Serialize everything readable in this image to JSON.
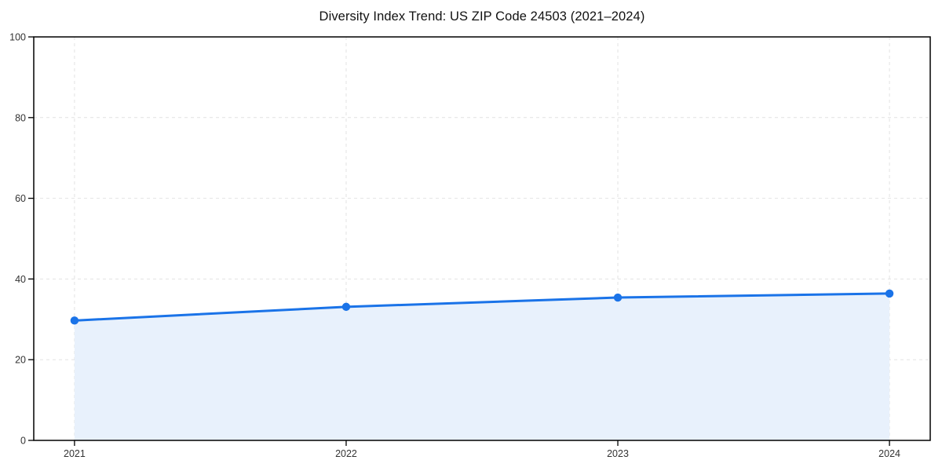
{
  "chart_data": {
    "type": "area",
    "title": "Diversity Index Trend: US ZIP Code 24503 (2021–2024)",
    "x": [
      2021,
      2022,
      2023,
      2024
    ],
    "values": [
      29.7,
      33.1,
      35.4,
      36.4
    ],
    "xlabel": "",
    "ylabel": "",
    "xlim": [
      2020.85,
      2024.15
    ],
    "ylim": [
      0,
      100
    ],
    "xticks": [
      2021,
      2022,
      2023,
      2024
    ],
    "xtick_labels": [
      "2021",
      "2022",
      "2023",
      "2024"
    ],
    "yticks": [
      0,
      20,
      40,
      60,
      80,
      100
    ],
    "ytick_labels": [
      "0",
      "20",
      "40",
      "60",
      "80",
      "100"
    ],
    "grid": "dashed",
    "legend": "none",
    "colors": {
      "line": "#1a73e8",
      "marker": "#1a73e8",
      "fill": "#e8f1fc",
      "grid": "#e2e2e2",
      "spine": "#000000",
      "tick_text": "#333333",
      "title_text": "#111111"
    }
  }
}
